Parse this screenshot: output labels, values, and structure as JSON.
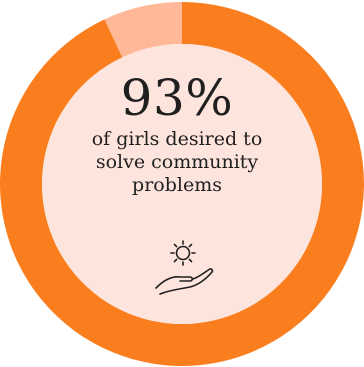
{
  "chart_data": {
    "type": "pie",
    "values": [
      93,
      7
    ],
    "highlight": {
      "value_label": "93%",
      "caption_lines": [
        "of girls desired to",
        "solve community",
        "problems"
      ]
    }
  },
  "colors": {
    "ring_main": "#fa7e1e",
    "ring_rest": "#ffb898",
    "inner_fill": "#fde4dd",
    "text": "#1f1f1f"
  },
  "icons": {
    "caption_icon": "hand-holding-sun-icon"
  }
}
